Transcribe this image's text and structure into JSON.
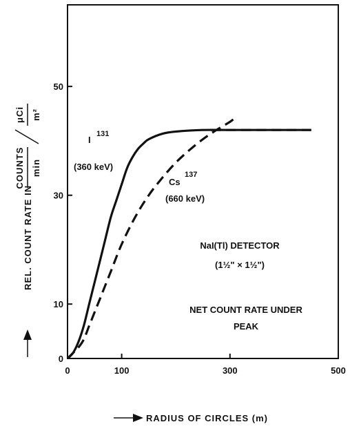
{
  "chart_data": {
    "type": "line",
    "xlabel": "RADIUS OF CIRCLES (m)",
    "ylabel": {
      "prefix": "REL. COUNT RATE IN",
      "num1": "COUNTS",
      "den1": "min",
      "num2": "μCi",
      "den2": "m²"
    },
    "xlim": [
      0,
      500
    ],
    "ylim": [
      0,
      65
    ],
    "xticks": [
      0,
      100,
      300,
      500
    ],
    "yticks": [
      0,
      10,
      30,
      50
    ],
    "series": [
      {
        "isotope": "I",
        "mass": "131",
        "energy": "(360 keV)",
        "style": "solid",
        "x": [
          0,
          10,
          20,
          30,
          40,
          50,
          60,
          70,
          80,
          90,
          100,
          110,
          120,
          130,
          140,
          150,
          175,
          200,
          250,
          300,
          350,
          400,
          450
        ],
        "y": [
          0,
          1,
          3,
          6,
          10,
          14,
          18,
          22,
          26,
          29,
          32,
          35,
          37,
          38.5,
          39.5,
          40.3,
          41.3,
          41.7,
          42,
          42,
          42,
          42,
          42
        ]
      },
      {
        "isotope": "Cs",
        "mass": "137",
        "energy": "(660 keV)",
        "style": "dashed",
        "x": [
          0,
          10,
          20,
          30,
          40,
          50,
          60,
          80,
          100,
          125,
          150,
          175,
          200,
          225,
          250,
          275,
          300,
          310
        ],
        "y": [
          0,
          1,
          2,
          3.5,
          6,
          8.5,
          11,
          16,
          21,
          26,
          30,
          33.2,
          36,
          38.3,
          40.3,
          42,
          43.5,
          44.3
        ]
      },
      {
        "style": "dashed",
        "x": [
          265,
          300,
          350,
          400,
          450
        ],
        "y": [
          42,
          42,
          42,
          42,
          42
        ]
      }
    ],
    "annotations": {
      "detector": "NaI(Tl) DETECTOR",
      "size": "(1½\" × 1½\")",
      "net_line1": "NET COUNT RATE UNDER",
      "net_line2": "PEAK"
    }
  }
}
